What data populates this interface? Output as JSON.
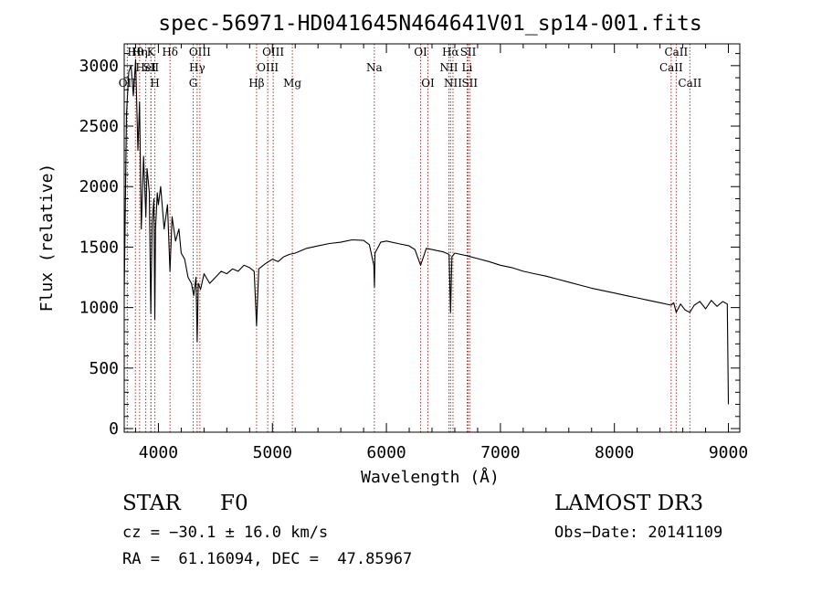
{
  "chart_data": {
    "type": "line",
    "title": "spec-56971-HD041645N464641V01_sp14-001.fits",
    "xlabel": "Wavelength (Å)",
    "ylabel": "Flux (relative)",
    "xlim": [
      3700,
      9100
    ],
    "ylim": [
      -30,
      3180
    ],
    "xticks": [
      4000,
      5000,
      6000,
      7000,
      8000,
      9000
    ],
    "yticks": [
      0,
      500,
      1000,
      1500,
      2000,
      2500,
      3000
    ],
    "x": [
      3700,
      3720,
      3740,
      3760,
      3780,
      3800,
      3820,
      3835,
      3850,
      3870,
      3890,
      3900,
      3920,
      3933,
      3945,
      3960,
      3968,
      3975,
      3990,
      4000,
      4020,
      4050,
      4080,
      4101,
      4120,
      4150,
      4180,
      4200,
      4230,
      4260,
      4290,
      4310,
      4330,
      4340,
      4350,
      4370,
      4400,
      4450,
      4500,
      4550,
      4600,
      4650,
      4700,
      4750,
      4800,
      4840,
      4861,
      4880,
      4920,
      4950,
      5000,
      5050,
      5100,
      5150,
      5200,
      5250,
      5300,
      5400,
      5500,
      5600,
      5700,
      5800,
      5850,
      5890,
      5895,
      5900,
      5950,
      6000,
      6100,
      6200,
      6250,
      6300,
      6350,
      6400,
      6450,
      6500,
      6550,
      6563,
      6575,
      6600,
      6700,
      6800,
      6900,
      7000,
      7100,
      7200,
      7300,
      7400,
      7500,
      7600,
      7700,
      7800,
      7900,
      8000,
      8100,
      8200,
      8300,
      8400,
      8498,
      8520,
      8542,
      8580,
      8620,
      8662,
      8700,
      8750,
      8800,
      8850,
      8900,
      8950,
      8990,
      9000
    ],
    "y": [
      1100,
      2600,
      2950,
      3000,
      2750,
      3050,
      2300,
      2700,
      1650,
      2250,
      1750,
      2150,
      1950,
      950,
      1700,
      1900,
      900,
      1650,
      1950,
      1850,
      2000,
      1650,
      1850,
      1300,
      1750,
      1550,
      1650,
      1450,
      1400,
      1250,
      1200,
      1100,
      1250,
      720,
      1200,
      1150,
      1280,
      1200,
      1250,
      1300,
      1280,
      1320,
      1300,
      1350,
      1330,
      1300,
      850,
      1320,
      1350,
      1370,
      1400,
      1380,
      1420,
      1440,
      1450,
      1470,
      1490,
      1510,
      1530,
      1540,
      1560,
      1555,
      1520,
      1350,
      1170,
      1450,
      1540,
      1550,
      1530,
      1510,
      1480,
      1350,
      1490,
      1480,
      1470,
      1460,
      1440,
      960,
      1420,
      1450,
      1430,
      1405,
      1380,
      1350,
      1330,
      1300,
      1280,
      1260,
      1235,
      1210,
      1185,
      1160,
      1140,
      1120,
      1100,
      1080,
      1060,
      1040,
      1020,
      1040,
      960,
      1030,
      980,
      960,
      1020,
      1050,
      990,
      1060,
      1010,
      1050,
      1030,
      200
    ]
  },
  "lines": [
    {
      "label": "OII",
      "wl": 3727,
      "row": 2
    },
    {
      "label": "Hθ",
      "wl": 3798,
      "row": 0
    },
    {
      "label": "Hη",
      "wl": 3835,
      "row": 0
    },
    {
      "label": "HeI",
      "wl": 3889,
      "row": 1
    },
    {
      "label": "SII",
      "wl": 3935,
      "row": 1
    },
    {
      "label": "K",
      "wl": 3934,
      "row": 0
    },
    {
      "label": "H",
      "wl": 3969,
      "row": 2
    },
    {
      "label": "Hδ",
      "wl": 4102,
      "row": 0
    },
    {
      "label": "G",
      "wl": 4305,
      "row": 2
    },
    {
      "label": "Hγ",
      "wl": 4340,
      "row": 1
    },
    {
      "label": "OIII",
      "wl": 4364,
      "row": 0
    },
    {
      "label": "Hβ",
      "wl": 4861,
      "row": 2
    },
    {
      "label": "OIII",
      "wl": 4959,
      "row": 1
    },
    {
      "label": "OIII",
      "wl": 5007,
      "row": 0
    },
    {
      "label": "Mg",
      "wl": 5175,
      "row": 2
    },
    {
      "label": "Na",
      "wl": 5894,
      "row": 1
    },
    {
      "label": "OI",
      "wl": 6300,
      "row": 0
    },
    {
      "label": "OI",
      "wl": 6364,
      "row": 2
    },
    {
      "label": "NII",
      "wl": 6548,
      "row": 1
    },
    {
      "label": "Hα",
      "wl": 6563,
      "row": 0
    },
    {
      "label": "NII",
      "wl": 6584,
      "row": 2
    },
    {
      "label": "Li",
      "wl": 6708,
      "row": 1
    },
    {
      "label": "SII",
      "wl": 6717,
      "row": 0
    },
    {
      "label": "SII",
      "wl": 6731,
      "row": 2
    },
    {
      "label": "CaII",
      "wl": 8498,
      "row": 1
    },
    {
      "label": "CaII",
      "wl": 8542,
      "row": 0
    },
    {
      "label": "CaII",
      "wl": 8662,
      "row": 2
    }
  ],
  "info": {
    "object_class": "STAR",
    "subclass": "F0",
    "survey": "LAMOST DR3",
    "redshift": "cz = −30.1 ± 16.0 km/s",
    "obs_date": "Obs−Date: 20141109",
    "coords": "RA =  61.16094, DEC =  47.85967"
  },
  "colors": {
    "spectrum": "#000000",
    "line_markers": "#b03030",
    "background": "#ffffff"
  }
}
